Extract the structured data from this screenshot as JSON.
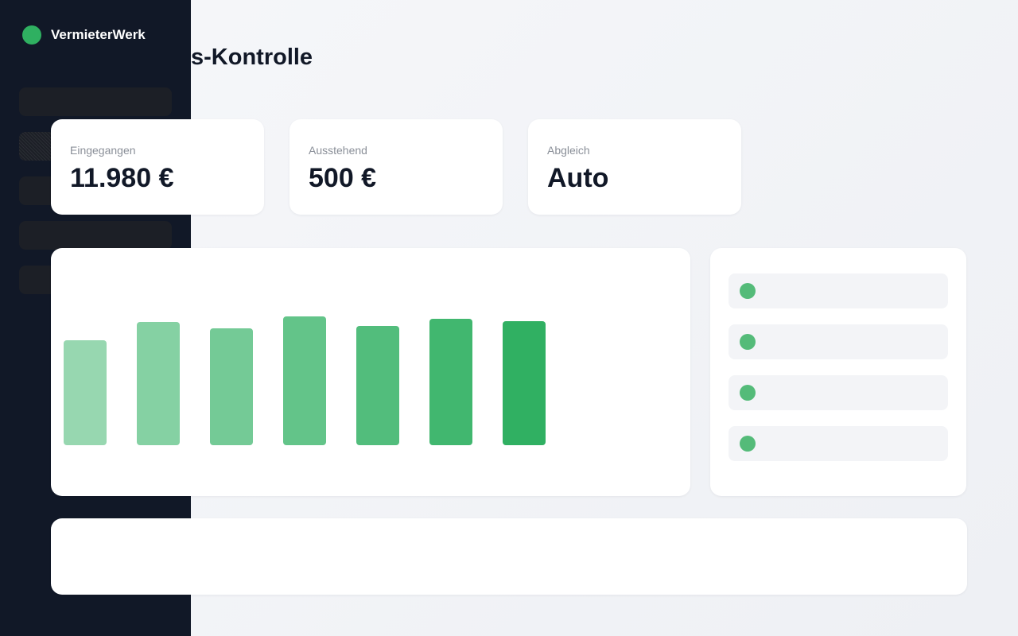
{
  "header": {
    "brand": "VermieterWerk",
    "title": "s-Kontrolle"
  },
  "stats": [
    {
      "label": "Eingegangen",
      "value": "11.980 €"
    },
    {
      "label": "Ausstehend",
      "value": "500 €"
    },
    {
      "label": "Abgleich",
      "value": "Auto"
    }
  ],
  "chart_data": {
    "type": "bar",
    "values": [
      66,
      77.5,
      73.5,
      81,
      75,
      79.5,
      78
    ],
    "color": "#2fb061"
  }
}
